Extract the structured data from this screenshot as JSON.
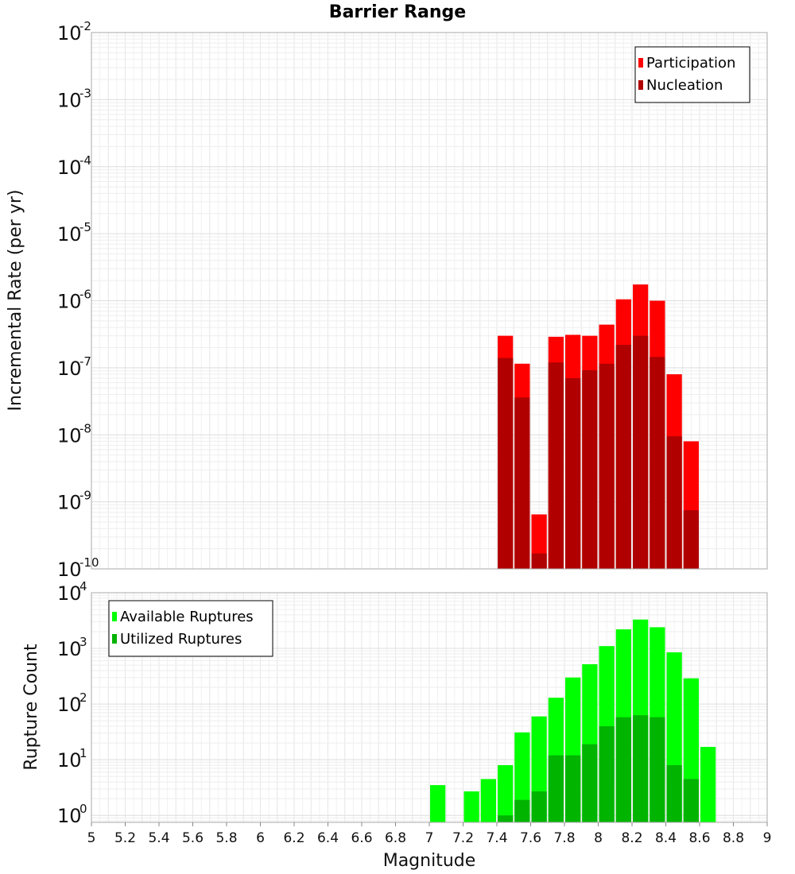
{
  "chart_data": [
    {
      "type": "bar",
      "title": "Barrier Range",
      "xlabel": "",
      "ylabel": "Incremental Rate (per yr)",
      "xlim": [
        5,
        9
      ],
      "ylim": [
        1e-10,
        0.01
      ],
      "yscale": "log",
      "grid": true,
      "bar_width": 0.1,
      "legend_position": "top-right",
      "y_ticks": [
        {
          "base": "10",
          "exp": "-10"
        },
        {
          "base": "10",
          "exp": "-9"
        },
        {
          "base": "10",
          "exp": "-8"
        },
        {
          "base": "10",
          "exp": "-7"
        },
        {
          "base": "10",
          "exp": "-6"
        },
        {
          "base": "10",
          "exp": "-5"
        },
        {
          "base": "10",
          "exp": "-4"
        },
        {
          "base": "10",
          "exp": "-3"
        },
        {
          "base": "10",
          "exp": "-2"
        }
      ],
      "x": [
        7.45,
        7.55,
        7.65,
        7.75,
        7.85,
        7.95,
        8.05,
        8.15,
        8.25,
        8.35,
        8.45,
        8.55
      ],
      "series": [
        {
          "name": "Participation",
          "color": "#ff0000",
          "values": [
            3e-07,
            1.15e-07,
            6.5e-10,
            2.9e-07,
            3.1e-07,
            3e-07,
            4.4e-07,
            1.05e-06,
            1.75e-06,
            1e-06,
            8e-08,
            8e-09
          ]
        },
        {
          "name": "Nucleation",
          "color": "#b00000",
          "values": [
            1.4e-07,
            3.6e-08,
            1.7e-10,
            1.2e-07,
            7e-08,
            9.2e-08,
            1.15e-07,
            2.2e-07,
            3e-07,
            1.45e-07,
            9.5e-09,
            7.5e-10
          ]
        }
      ]
    },
    {
      "type": "bar",
      "title": "",
      "xlabel": "Magnitude",
      "ylabel": "Rupture Count",
      "xlim": [
        5,
        9
      ],
      "ylim": [
        0.75,
        10000
      ],
      "yscale": "log",
      "grid": true,
      "bar_width": 0.1,
      "legend_position": "top-left",
      "x_ticks": [
        "5",
        "5.2",
        "5.4",
        "5.6",
        "5.8",
        "6",
        "6.2",
        "6.4",
        "6.6",
        "6.8",
        "7",
        "7.2",
        "7.4",
        "7.6",
        "7.8",
        "8",
        "8.2",
        "8.4",
        "8.6",
        "8.8",
        "9"
      ],
      "y_ticks": [
        {
          "base": "10",
          "exp": "0"
        },
        {
          "base": "10",
          "exp": "1"
        },
        {
          "base": "10",
          "exp": "2"
        },
        {
          "base": "10",
          "exp": "3"
        },
        {
          "base": "10",
          "exp": "4"
        }
      ],
      "x": [
        7.05,
        7.25,
        7.35,
        7.45,
        7.55,
        7.65,
        7.75,
        7.85,
        7.95,
        8.05,
        8.15,
        8.25,
        8.35,
        8.45,
        8.55,
        8.65
      ],
      "series": [
        {
          "name": "Available Ruptures",
          "color": "#00ff00",
          "values": [
            3.5,
            2.7,
            4.5,
            8.0,
            31,
            60,
            130,
            300,
            520,
            1100,
            2200,
            3300,
            2400,
            850,
            290,
            17
          ]
        },
        {
          "name": "Utilized Ruptures",
          "color": "#00b400",
          "values": [
            null,
            null,
            null,
            1.0,
            1.9,
            2.7,
            12,
            12,
            19,
            40,
            58,
            63,
            58,
            8,
            4.5,
            null
          ]
        }
      ]
    }
  ]
}
